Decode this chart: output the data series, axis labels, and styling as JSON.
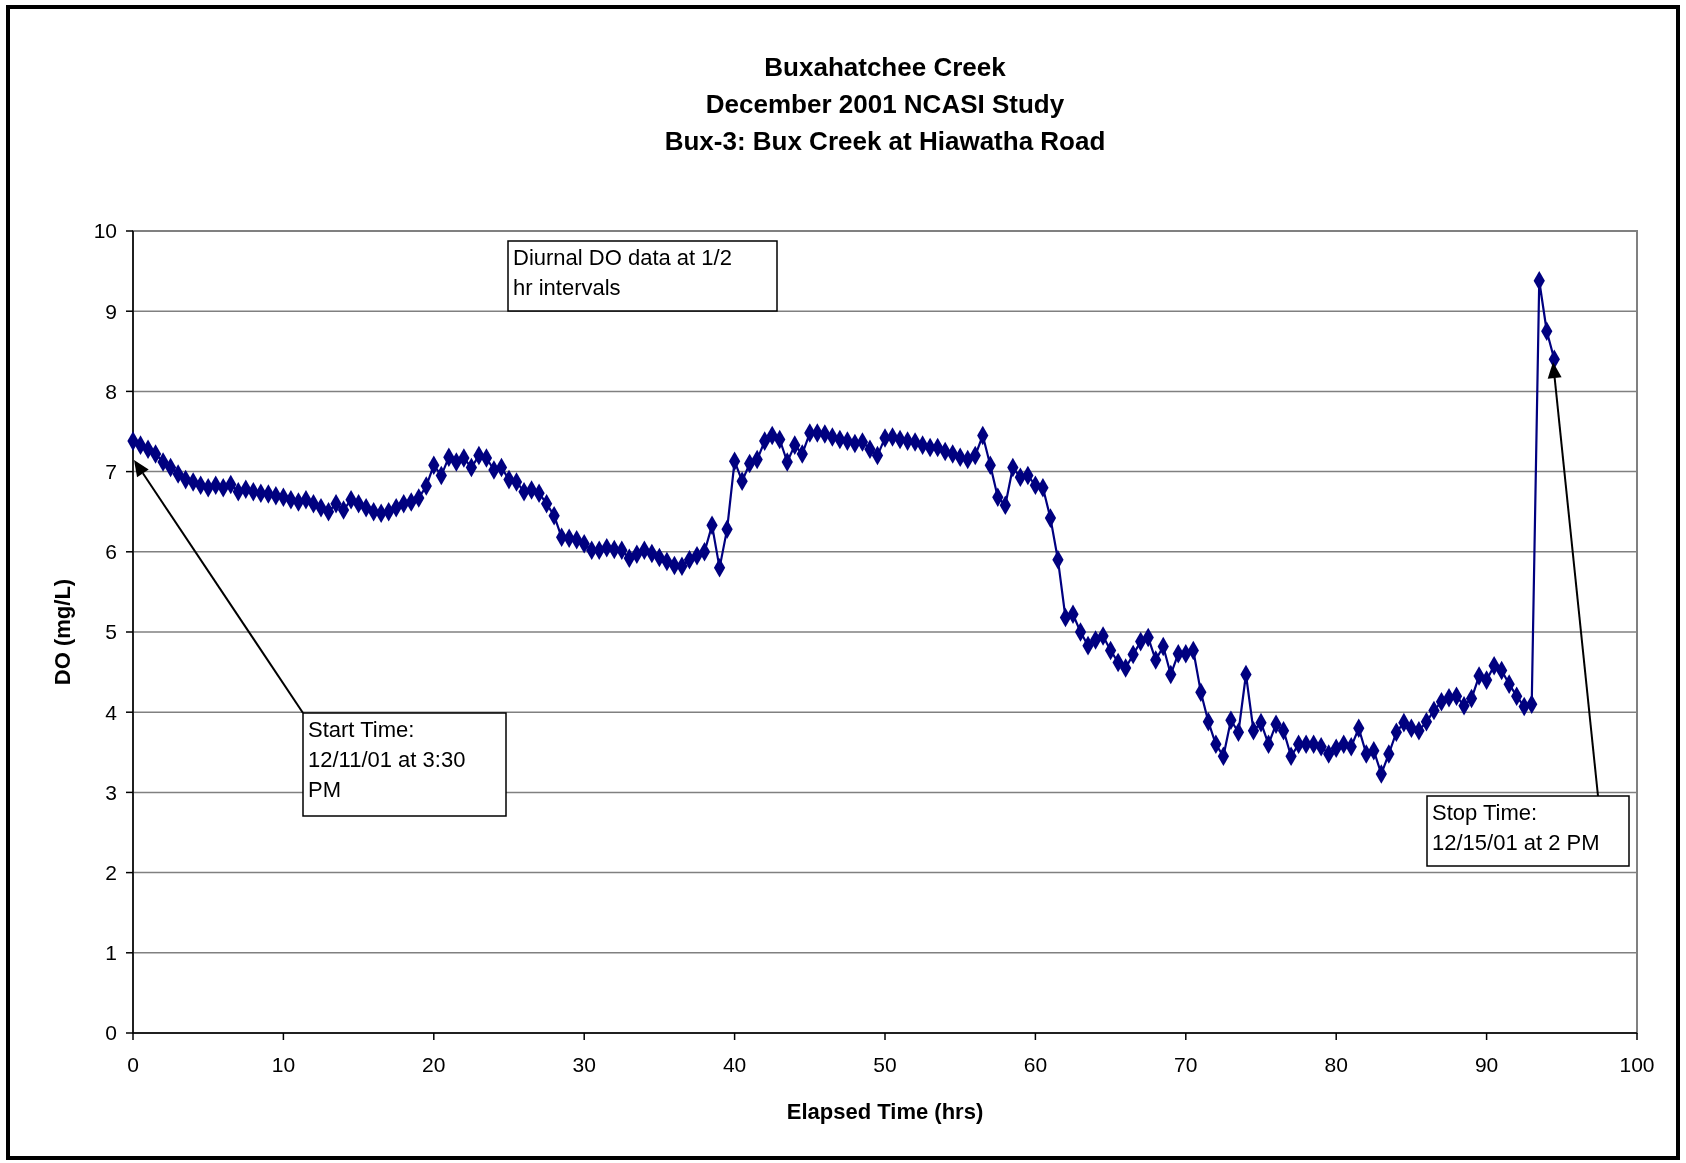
{
  "chart_data": {
    "type": "line",
    "title": "Buxahatchee Creek\nDecember 2001 NCASI Study\nBux-3: Bux Creek at Hiawatha Road",
    "xlabel": "Elapsed Time (hrs)",
    "ylabel": "DO (mg/L)",
    "x": [
      0,
      0.5,
      1,
      1.5,
      2,
      2.5,
      3,
      3.5,
      4,
      4.5,
      5,
      5.5,
      6,
      6.5,
      7,
      7.5,
      8,
      8.5,
      9,
      9.5,
      10,
      10.5,
      11,
      11.5,
      12,
      12.5,
      13,
      13.5,
      14,
      14.5,
      15,
      15.5,
      16,
      16.5,
      17,
      17.5,
      18,
      18.5,
      19,
      19.5,
      20,
      20.5,
      21,
      21.5,
      22,
      22.5,
      23,
      23.5,
      24,
      24.5,
      25,
      25.5,
      26,
      26.5,
      27,
      27.5,
      28,
      28.5,
      29,
      29.5,
      30,
      30.5,
      31,
      31.5,
      32,
      32.5,
      33,
      33.5,
      34,
      34.5,
      35,
      35.5,
      36,
      36.5,
      37,
      37.5,
      38,
      38.5,
      39,
      39.5,
      40,
      40.5,
      41,
      41.5,
      42,
      42.5,
      43,
      43.5,
      44,
      44.5,
      45,
      45.5,
      46,
      46.5,
      47,
      47.5,
      48,
      48.5,
      49,
      49.5,
      50,
      50.5,
      51,
      51.5,
      52,
      52.5,
      53,
      53.5,
      54,
      54.5,
      55,
      55.5,
      56,
      56.5,
      57,
      57.5,
      58,
      58.5,
      59,
      59.5,
      60,
      60.5,
      61,
      61.5,
      62,
      62.5,
      63,
      63.5,
      64,
      64.5,
      65,
      65.5,
      66,
      66.5,
      67,
      67.5,
      68,
      68.5,
      69,
      69.5,
      70,
      70.5,
      71,
      71.5,
      72,
      72.5,
      73,
      73.5,
      74,
      74.5,
      75,
      75.5,
      76,
      76.5,
      77,
      77.5,
      78,
      78.5,
      79,
      79.5,
      80,
      80.5,
      81,
      81.5,
      82,
      82.5,
      83,
      83.5,
      84,
      84.5,
      85,
      85.5,
      86,
      86.5,
      87,
      87.5,
      88,
      88.5,
      89,
      89.5,
      90,
      90.5,
      91,
      91.5,
      92,
      92.5,
      93,
      93.5,
      94,
      94.5
    ],
    "series": [
      {
        "color": "#000080",
        "values": [
          7.38,
          7.33,
          7.28,
          7.22,
          7.12,
          7.05,
          6.97,
          6.9,
          6.87,
          6.83,
          6.8,
          6.83,
          6.8,
          6.84,
          6.75,
          6.78,
          6.75,
          6.73,
          6.72,
          6.7,
          6.68,
          6.65,
          6.62,
          6.65,
          6.6,
          6.55,
          6.5,
          6.6,
          6.52,
          6.65,
          6.6,
          6.55,
          6.5,
          6.48,
          6.5,
          6.55,
          6.6,
          6.62,
          6.67,
          6.82,
          7.08,
          6.95,
          7.18,
          7.12,
          7.17,
          7.05,
          7.2,
          7.17,
          7.02,
          7.05,
          6.9,
          6.87,
          6.75,
          6.77,
          6.73,
          6.6,
          6.45,
          6.18,
          6.17,
          6.15,
          6.1,
          6.02,
          6.02,
          6.05,
          6.03,
          6.02,
          5.92,
          5.97,
          6.02,
          5.98,
          5.93,
          5.88,
          5.83,
          5.82,
          5.9,
          5.95,
          6.0,
          6.33,
          5.8,
          6.28,
          7.13,
          6.88,
          7.1,
          7.15,
          7.38,
          7.45,
          7.4,
          7.12,
          7.33,
          7.22,
          7.48,
          7.48,
          7.47,
          7.43,
          7.4,
          7.38,
          7.35,
          7.37,
          7.28,
          7.2,
          7.42,
          7.43,
          7.4,
          7.38,
          7.37,
          7.33,
          7.3,
          7.3,
          7.25,
          7.22,
          7.18,
          7.15,
          7.2,
          7.45,
          7.08,
          6.68,
          6.58,
          7.05,
          6.93,
          6.95,
          6.83,
          6.8,
          6.42,
          5.9,
          5.18,
          5.22,
          5.0,
          4.83,
          4.9,
          4.95,
          4.77,
          4.62,
          4.55,
          4.72,
          4.88,
          4.93,
          4.65,
          4.82,
          4.47,
          4.73,
          4.73,
          4.77,
          4.25,
          3.88,
          3.6,
          3.45,
          3.9,
          3.75,
          4.47,
          3.77,
          3.87,
          3.6,
          3.85,
          3.77,
          3.45,
          3.6,
          3.6,
          3.6,
          3.57,
          3.48,
          3.55,
          3.6,
          3.57,
          3.8,
          3.48,
          3.52,
          3.23,
          3.48,
          3.75,
          3.87,
          3.8,
          3.77,
          3.88,
          4.02,
          4.13,
          4.18,
          4.2,
          4.08,
          4.17,
          4.45,
          4.4,
          4.58,
          4.52,
          4.35,
          4.2,
          4.07,
          4.1,
          9.38,
          8.75,
          8.4
        ]
      }
    ],
    "xlim": [
      0,
      100
    ],
    "xticks": [
      0,
      10,
      20,
      30,
      40,
      50,
      60,
      70,
      80,
      90,
      100
    ],
    "ylim": [
      0,
      10
    ],
    "yticks": [
      0,
      1,
      2,
      3,
      4,
      5,
      6,
      7,
      8,
      9,
      10
    ],
    "grid": "y",
    "marker": "diamond",
    "line_style": "solid",
    "annotations": [
      "Diurnal DO data at 1/2 hr intervals",
      "Start Time: 12/11/01 at 3:30 PM",
      "Stop Time: 12/15/01 at 2 PM"
    ]
  }
}
